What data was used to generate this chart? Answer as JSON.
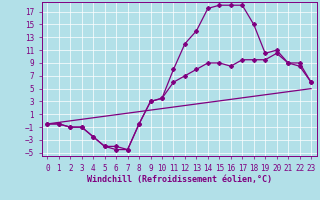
{
  "xlabel": "Windchill (Refroidissement éolien,°C)",
  "bg_color": "#b2e0e8",
  "line_color": "#800080",
  "grid_color": "#ffffff",
  "xlim": [
    -0.5,
    23.5
  ],
  "ylim": [
    -5.5,
    18.5
  ],
  "xticks": [
    0,
    1,
    2,
    3,
    4,
    5,
    6,
    7,
    8,
    9,
    10,
    11,
    12,
    13,
    14,
    15,
    16,
    17,
    18,
    19,
    20,
    21,
    22,
    23
  ],
  "yticks": [
    -5,
    -3,
    -1,
    1,
    3,
    5,
    7,
    9,
    11,
    13,
    15,
    17
  ],
  "curve1_x": [
    0,
    1,
    2,
    3,
    4,
    5,
    6,
    7,
    8,
    9,
    10,
    11,
    12,
    13,
    14,
    15,
    16,
    17,
    18,
    19,
    20,
    21,
    22,
    23
  ],
  "curve1_y": [
    -0.5,
    -0.5,
    -1.0,
    -1.0,
    -2.5,
    -4.0,
    -4.5,
    -4.5,
    -0.5,
    3.0,
    3.5,
    8.0,
    12.0,
    14.0,
    17.5,
    18.0,
    18.0,
    18.0,
    15.0,
    10.5,
    11.0,
    9.0,
    9.0,
    6.0
  ],
  "curve2_x": [
    0,
    1,
    2,
    3,
    4,
    5,
    6,
    7,
    8,
    9,
    10,
    11,
    12,
    13,
    14,
    15,
    16,
    17,
    18,
    19,
    20,
    21,
    22,
    23
  ],
  "curve2_y": [
    -0.5,
    -0.5,
    -1.0,
    -1.0,
    -2.5,
    -4.0,
    -4.0,
    -4.5,
    -0.5,
    3.0,
    3.5,
    6.0,
    7.0,
    8.0,
    9.0,
    9.0,
    8.5,
    9.5,
    9.5,
    9.5,
    10.5,
    9.0,
    8.5,
    6.0
  ],
  "curve3_x": [
    0,
    23
  ],
  "curve3_y": [
    -0.5,
    5.0
  ],
  "marker": "D",
  "markersize": 2.0,
  "linewidth": 0.9,
  "tick_fontsize": 5.5,
  "xlabel_fontsize": 6.0
}
